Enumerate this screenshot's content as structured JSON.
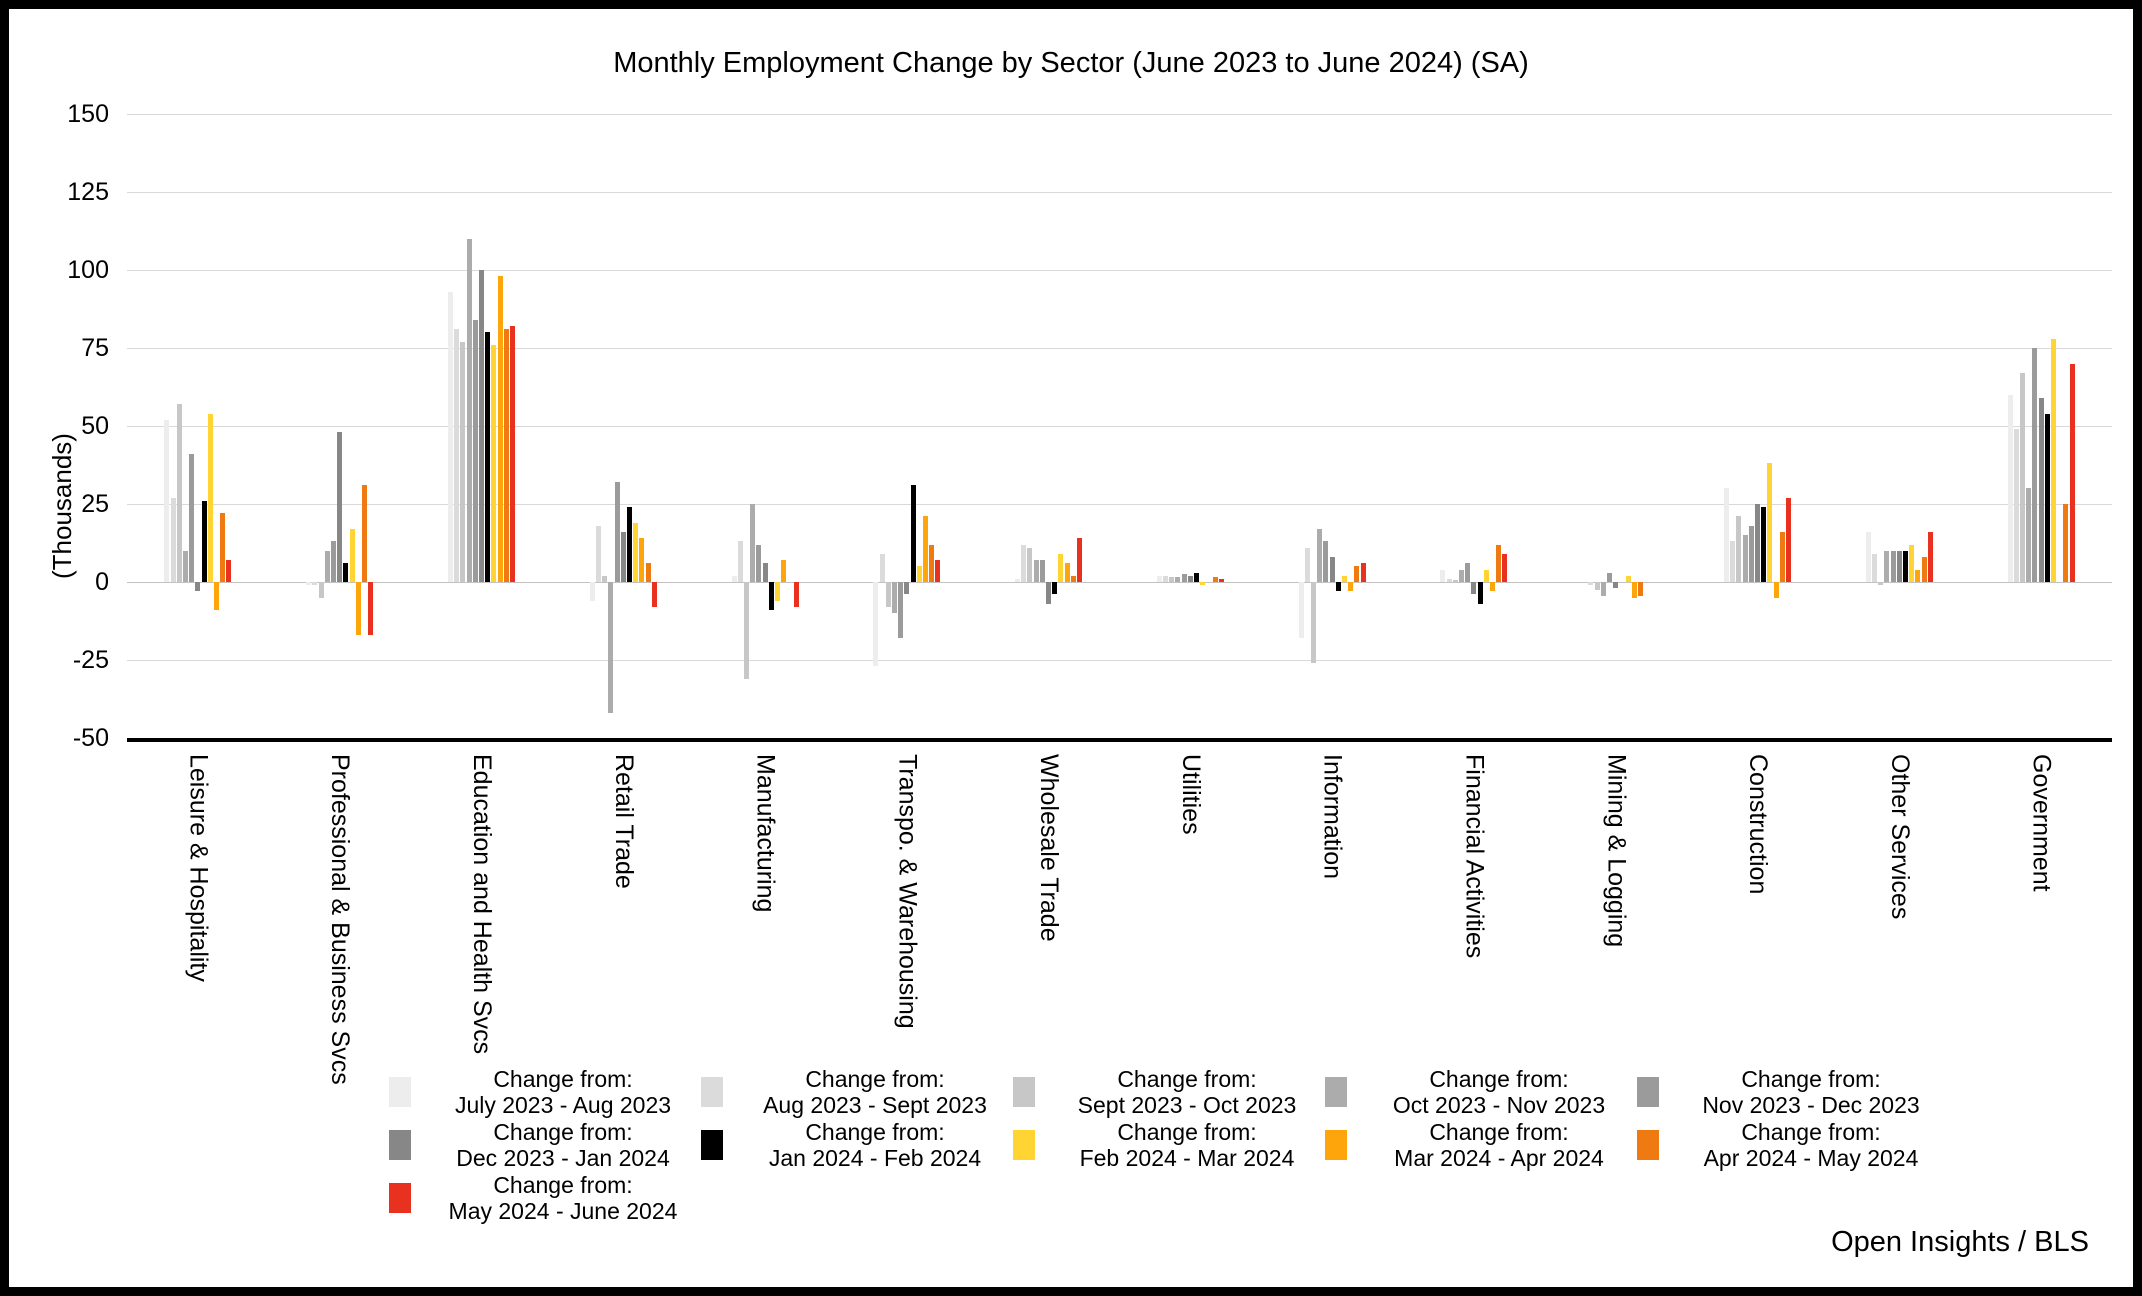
{
  "title": "Monthly Employment Change by Sector (June 2023 to June 2024) (SA)",
  "footer": "Open Insights / BLS",
  "legend": {
    "change_from_label": "Change from:",
    "columns_per_row": 5
  },
  "y_axis": {
    "label": "(Thousands)"
  },
  "chart_data": {
    "type": "bar",
    "title": "Monthly Employment Change by Sector (June 2023 to June 2024) (SA)",
    "xlabel": "",
    "ylabel": "(Thousands)",
    "ylim": [
      -50,
      150
    ],
    "y_ticks": [
      150,
      125,
      100,
      75,
      50,
      25,
      0,
      -25,
      -50
    ],
    "grid": true,
    "legend_position": "bottom",
    "categories": [
      "Leisure & Hospitality",
      "Professional & Business Svcs",
      "Education and Health Svcs",
      "Retail Trade",
      "Manufacturing",
      "Transpo. & Warehousing",
      "Wholesale Trade",
      "Utilities",
      "Information",
      "Financial Activities",
      "Mining & Logging",
      "Construction",
      "Other Services",
      "Government"
    ],
    "series": [
      {
        "name": "July 2023 - Aug 2023",
        "color": "#EDEDED",
        "values": [
          52,
          -1,
          93,
          -6,
          2,
          -27,
          1,
          2,
          -18,
          4,
          0,
          30,
          16,
          60
        ]
      },
      {
        "name": "Aug 2023 - Sept 2023",
        "color": "#DBDBDB",
        "values": [
          27,
          -1,
          81,
          18,
          13,
          9,
          12,
          2,
          11,
          1,
          -1,
          13,
          9,
          49
        ]
      },
      {
        "name": "Sept 2023 - Oct 2023",
        "color": "#C7C7C7",
        "values": [
          57,
          -5,
          77,
          2,
          -31,
          -8,
          11,
          1.5,
          -26,
          0.5,
          -2.5,
          21,
          -1,
          67
        ]
      },
      {
        "name": "Oct 2023 - Nov 2023",
        "color": "#ACACAC",
        "values": [
          10,
          10,
          110,
          -42,
          25,
          -10,
          7,
          1.5,
          17,
          4,
          -4.5,
          15,
          10,
          30
        ]
      },
      {
        "name": "Nov 2023 - Dec 2023",
        "color": "#9B9B9B",
        "values": [
          41,
          13,
          84,
          32,
          12,
          -18,
          7,
          2.5,
          13,
          6,
          3,
          18,
          10,
          75
        ]
      },
      {
        "name": "Dec 2023 - Jan 2024",
        "color": "#878787",
        "values": [
          -3,
          48,
          100,
          16,
          6,
          -4,
          -7,
          2,
          8,
          -4,
          -2,
          25,
          10,
          59
        ]
      },
      {
        "name": "Jan 2024 - Feb 2024",
        "color": "#000000",
        "values": [
          26,
          6,
          80,
          24,
          -9,
          31,
          -4,
          3,
          -3,
          -7,
          0,
          24,
          10,
          54
        ]
      },
      {
        "name": "Feb 2024 - Mar 2024",
        "color": "#FFD433",
        "values": [
          54,
          17,
          76,
          19,
          -6,
          5,
          9,
          -1,
          2,
          4,
          2,
          38,
          12,
          78
        ]
      },
      {
        "name": "Mar 2024 - Apr 2024",
        "color": "#FFA50C",
        "values": [
          -9,
          -17,
          98,
          14,
          7,
          21,
          6,
          0,
          -3,
          -3,
          -5,
          -5,
          4,
          0
        ]
      },
      {
        "name": "Apr 2024 - May 2024",
        "color": "#EF7A12",
        "values": [
          22,
          31,
          81,
          6,
          0,
          12,
          2,
          1.5,
          5,
          12,
          -4.5,
          16,
          8,
          25
        ]
      },
      {
        "name": "May 2024 - June 2024",
        "color": "#E93120",
        "values": [
          7,
          -17,
          82,
          -8,
          -8,
          7,
          14,
          1,
          6,
          9,
          0,
          27,
          16,
          70
        ]
      }
    ]
  }
}
